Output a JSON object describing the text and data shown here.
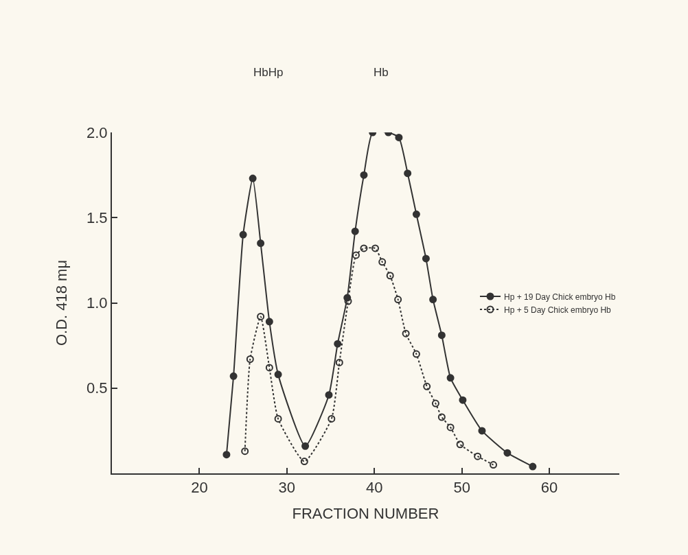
{
  "chart_data": {
    "type": "line",
    "xlabel": "FRACTION NUMBER",
    "ylabel": "O.D. 418 mμ",
    "annotations": [
      "HbHp",
      "Hb"
    ],
    "xlim": [
      10,
      68
    ],
    "xticks": [
      20,
      30,
      40,
      50,
      60
    ],
    "ylim": [
      0,
      2.0
    ],
    "yticks": [
      {
        "value": 0.5,
        "label": "0.5"
      },
      {
        "value": 1.0,
        "label": "1.0"
      },
      1.5,
      {
        "value": 2.0,
        "label": "2.0"
      }
    ],
    "grid": false,
    "legend": "right",
    "series": [
      {
        "name": "Hp + 19 Day Chick embryo Hb",
        "color": "#333333",
        "line_style": "solid",
        "marker": "circle",
        "x": [
          23.1,
          23.9,
          25.0,
          26.1,
          27.0,
          28.0,
          29.0,
          32.1,
          34.8,
          35.8,
          36.9,
          37.8,
          38.8,
          39.8,
          41.6,
          42.8,
          43.8,
          44.8,
          45.9,
          46.7,
          47.7,
          48.7,
          50.1,
          52.3,
          55.2,
          58.1
        ],
        "values": [
          0.11,
          0.57,
          1.4,
          1.73,
          1.35,
          0.89,
          0.58,
          0.16,
          0.46,
          0.76,
          1.03,
          1.42,
          1.75,
          2.0,
          2.0,
          1.97,
          1.76,
          1.52,
          1.26,
          1.02,
          0.81,
          0.56,
          0.43,
          0.25,
          0.12,
          0.04
        ]
      },
      {
        "name": "Hp + 5 Day Chick embryo Hb",
        "color": "#333333",
        "line_style": "dotted",
        "marker": "circle-open",
        "x": [
          25.2,
          25.8,
          27.0,
          28.0,
          29.0,
          32.0,
          35.1,
          36.0,
          37.0,
          37.9,
          38.8,
          40.1,
          40.9,
          41.8,
          42.7,
          43.6,
          44.8,
          46.0,
          47.0,
          47.7,
          48.7,
          49.8,
          51.8,
          53.6
        ],
        "values": [
          0.13,
          0.67,
          0.92,
          0.62,
          0.32,
          0.07,
          0.32,
          0.65,
          1.01,
          1.28,
          1.32,
          1.32,
          1.24,
          1.16,
          1.02,
          0.82,
          0.7,
          0.51,
          0.41,
          0.33,
          0.27,
          0.17,
          0.1,
          0.05
        ]
      }
    ]
  }
}
